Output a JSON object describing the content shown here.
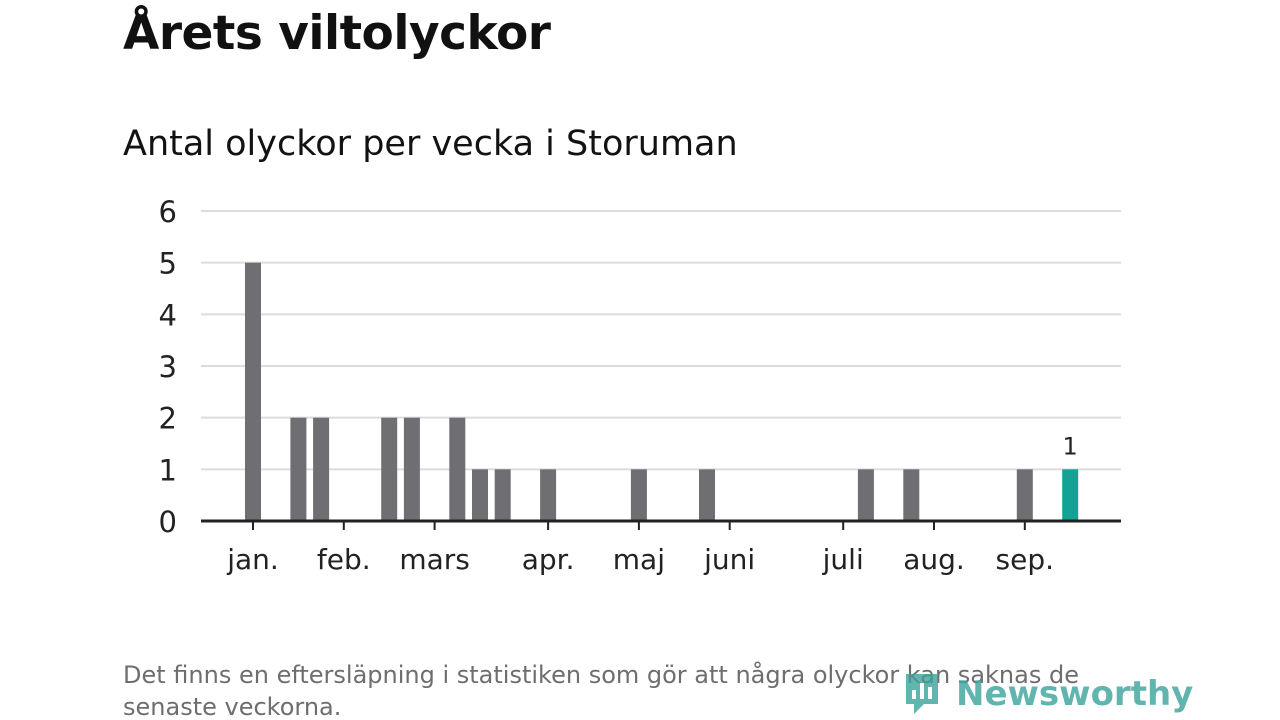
{
  "header": {
    "title": "Årets viltolyckor",
    "subtitle": "Antal olyckor per vecka i Storuman"
  },
  "footer": {
    "note": "Det finns en eftersläpning i statistiken som gör att några olyckor kan saknas de senaste veckorna.",
    "brand": "Newsworthy"
  },
  "colors": {
    "bar": "#6f6e73",
    "highlight": "#14a196",
    "grid": "#dcdcdc",
    "axis": "#222222",
    "brand": "#3aa39a"
  },
  "chart_data": {
    "type": "bar",
    "title": "Antal olyckor per vecka i Storuman",
    "xlabel": "",
    "ylabel": "",
    "ylim": [
      0,
      6
    ],
    "yticks": [
      0,
      1,
      2,
      3,
      4,
      5,
      6
    ],
    "grid": true,
    "weeks": [
      1,
      2,
      3,
      4,
      5,
      6,
      7,
      8,
      9,
      10,
      11,
      12,
      13,
      14,
      15,
      16,
      17,
      18,
      19,
      20,
      21,
      22,
      23,
      24,
      25,
      26,
      27,
      28,
      29,
      30,
      31,
      32,
      33,
      34,
      35,
      36,
      37,
      38
    ],
    "values": [
      5,
      0,
      2,
      2,
      0,
      0,
      2,
      2,
      0,
      2,
      1,
      1,
      0,
      1,
      0,
      0,
      0,
      1,
      0,
      0,
      1,
      0,
      0,
      0,
      0,
      0,
      0,
      1,
      0,
      1,
      0,
      0,
      0,
      0,
      1,
      0,
      1,
      0
    ],
    "month_labels": [
      {
        "label": "jan.",
        "week": 1
      },
      {
        "label": "feb.",
        "week": 5
      },
      {
        "label": "mars",
        "week": 9
      },
      {
        "label": "apr.",
        "week": 14
      },
      {
        "label": "maj",
        "week": 18
      },
      {
        "label": "juni",
        "week": 22
      },
      {
        "label": "juli",
        "week": 27
      },
      {
        "label": "aug.",
        "week": 31
      },
      {
        "label": "sep.",
        "week": 35
      }
    ],
    "highlight_week": 37,
    "highlight_label": "1"
  }
}
